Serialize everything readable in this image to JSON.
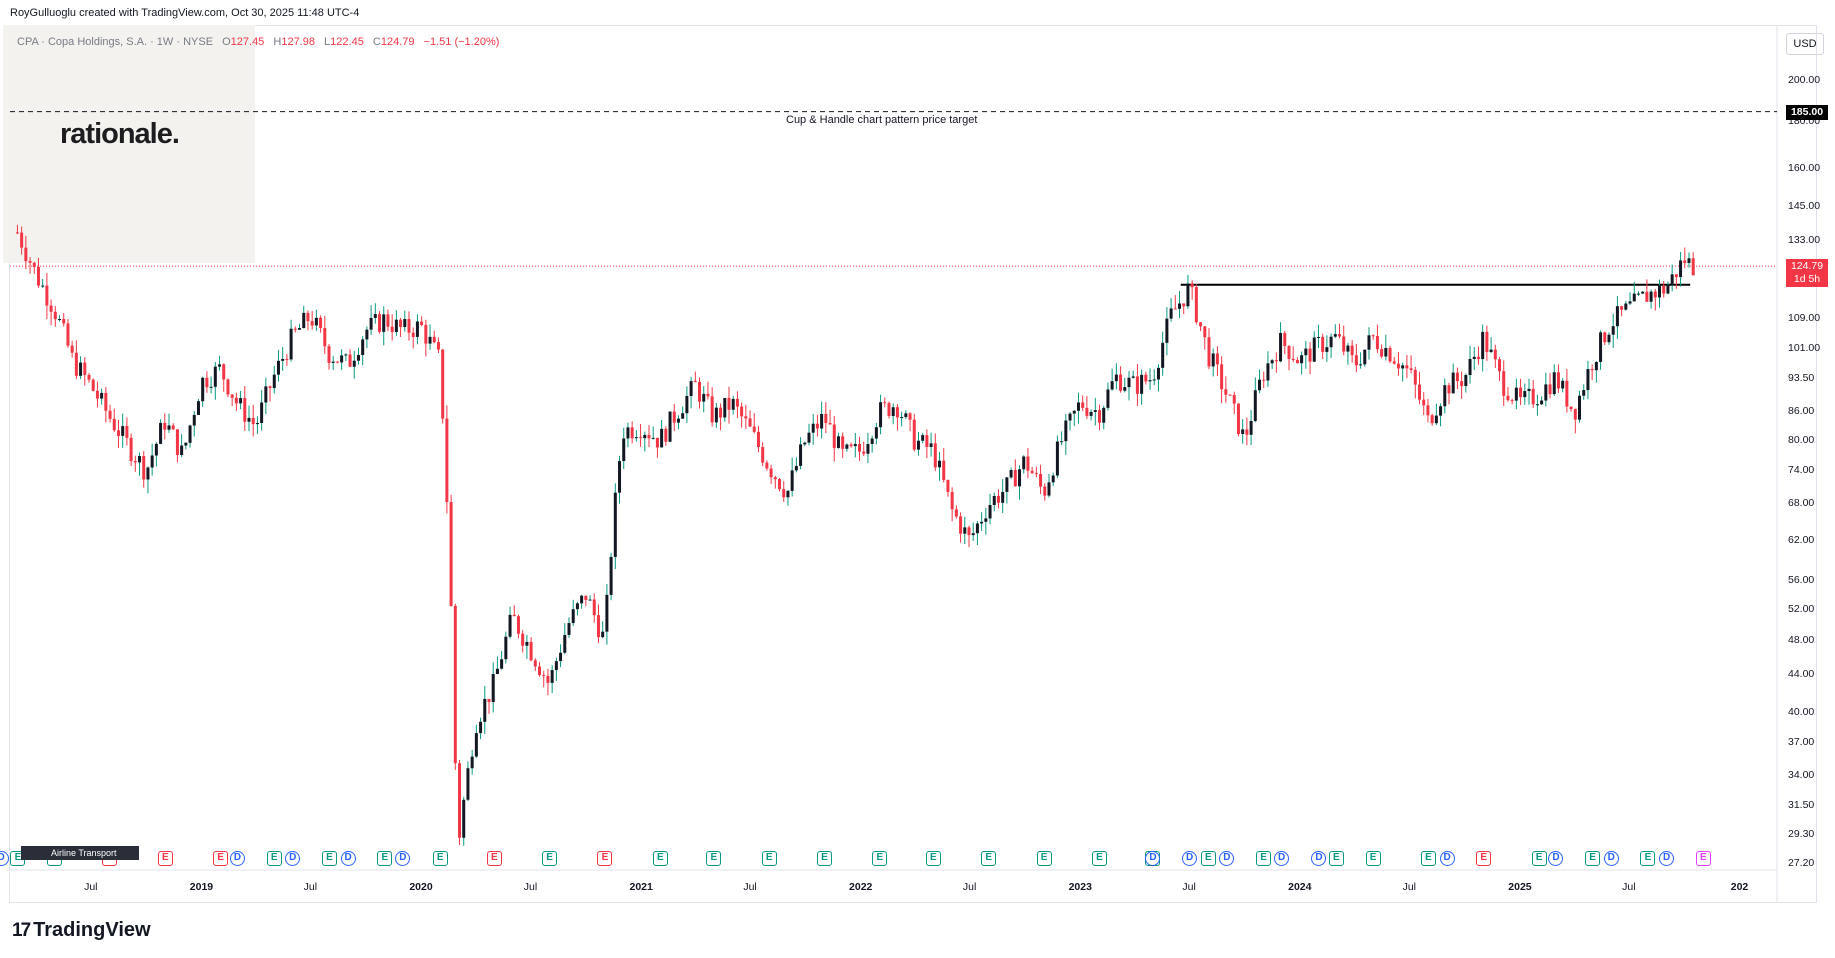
{
  "header": {
    "created_note": "RoyGulluoglu created with TradingView.com, Oct 30, 2025 11:48 UTC-4"
  },
  "legend": {
    "symbol": "CPA · Copa Holdings, S.A. · 1W · NYSE",
    "o_label": "O",
    "o_value": "127.45",
    "h_label": "H",
    "h_value": "127.98",
    "l_label": "L",
    "l_value": "122.45",
    "c_label": "C",
    "c_value": "124.79",
    "change": "−1.51 (−1.20%)"
  },
  "watermark": {
    "text": "rationale."
  },
  "currency_button": "USD",
  "annotation": {
    "text": "Cup & Handle chart pattern price target"
  },
  "badges": {
    "target": "185.00",
    "last_price": "124.79",
    "countdown": "1d 5h"
  },
  "footer": {
    "logo_glyph": "17",
    "brand": "TradingView"
  },
  "airline_label": "Airline Transport",
  "colors": {
    "up": "#089981",
    "down": "#f23645",
    "dividend": "#2962ff",
    "text": "#131722"
  },
  "chart_data": {
    "type": "candlestick",
    "ticker": "CPA",
    "interval": "1W",
    "scale": "log",
    "y_ticks": [
      "200.00",
      "180.00",
      "160.00",
      "145.00",
      "133.00",
      "124.79",
      "109.00",
      "101.00",
      "93.50",
      "86.00",
      "80.00",
      "74.00",
      "68.00",
      "62.00",
      "56.00",
      "52.00",
      "48.00",
      "44.00",
      "40.00",
      "37.00",
      "34.00",
      "31.50",
      "29.30",
      "27.20"
    ],
    "x_ticks": [
      {
        "date": "2018-07",
        "label": "Jul",
        "year": false
      },
      {
        "date": "2019-01",
        "label": "2019",
        "year": true
      },
      {
        "date": "2019-07",
        "label": "Jul",
        "year": false
      },
      {
        "date": "2020-01",
        "label": "2020",
        "year": true
      },
      {
        "date": "2020-07",
        "label": "Jul",
        "year": false
      },
      {
        "date": "2021-01",
        "label": "2021",
        "year": true
      },
      {
        "date": "2021-07",
        "label": "Jul",
        "year": false
      },
      {
        "date": "2022-01",
        "label": "2022",
        "year": true
      },
      {
        "date": "2022-07",
        "label": "Jul",
        "year": false
      },
      {
        "date": "2023-01",
        "label": "2023",
        "year": true
      },
      {
        "date": "2023-07",
        "label": "Jul",
        "year": false
      },
      {
        "date": "2024-01",
        "label": "2024",
        "year": true
      },
      {
        "date": "2024-07",
        "label": "Jul",
        "year": false
      },
      {
        "date": "2025-01",
        "label": "2025",
        "year": true
      },
      {
        "date": "2025-07",
        "label": "Jul",
        "year": false
      },
      {
        "date": "2026-01",
        "label": "202",
        "year": true
      }
    ],
    "price_path": [
      [
        "2018-03",
        136
      ],
      [
        "2018-04",
        122
      ],
      [
        "2018-05",
        112
      ],
      [
        "2018-06",
        98
      ],
      [
        "2018-07",
        92
      ],
      [
        "2018-08",
        85
      ],
      [
        "2018-09",
        79
      ],
      [
        "2018-10",
        74
      ],
      [
        "2018-11",
        84
      ],
      [
        "2018-12",
        77
      ],
      [
        "2019-01",
        93
      ],
      [
        "2019-02",
        96
      ],
      [
        "2019-03",
        88
      ],
      [
        "2019-04",
        83
      ],
      [
        "2019-05",
        94
      ],
      [
        "2019-06",
        104
      ],
      [
        "2019-07",
        110
      ],
      [
        "2019-08",
        100
      ],
      [
        "2019-09",
        97
      ],
      [
        "2019-10",
        106
      ],
      [
        "2019-11",
        109
      ],
      [
        "2019-12",
        106
      ],
      [
        "2020-01",
        107
      ],
      [
        "2020-02",
        98
      ],
      [
        "2020-03",
        28
      ],
      [
        "2020-04",
        39
      ],
      [
        "2020-05",
        43
      ],
      [
        "2020-06",
        51
      ],
      [
        "2020-07",
        47
      ],
      [
        "2020-08",
        43
      ],
      [
        "2020-09",
        50
      ],
      [
        "2020-10",
        54
      ],
      [
        "2020-11",
        48
      ],
      [
        "2020-12",
        82
      ],
      [
        "2021-01",
        83
      ],
      [
        "2021-02",
        80
      ],
      [
        "2021-03",
        86
      ],
      [
        "2021-04",
        92
      ],
      [
        "2021-05",
        85
      ],
      [
        "2021-06",
        88
      ],
      [
        "2021-07",
        82
      ],
      [
        "2021-08",
        75
      ],
      [
        "2021-09",
        70
      ],
      [
        "2021-10",
        80
      ],
      [
        "2021-11",
        85
      ],
      [
        "2021-12",
        77
      ],
      [
        "2022-01",
        78
      ],
      [
        "2022-02",
        86
      ],
      [
        "2022-03",
        88
      ],
      [
        "2022-04",
        80
      ],
      [
        "2022-05",
        78
      ],
      [
        "2022-06",
        67
      ],
      [
        "2022-07",
        62
      ],
      [
        "2022-08",
        68
      ],
      [
        "2022-09",
        71
      ],
      [
        "2022-10",
        76
      ],
      [
        "2022-11",
        70
      ],
      [
        "2022-12",
        80
      ],
      [
        "2023-01",
        88
      ],
      [
        "2023-02",
        86
      ],
      [
        "2023-03",
        94
      ],
      [
        "2023-04",
        92
      ],
      [
        "2023-05",
        94
      ],
      [
        "2023-06",
        110
      ],
      [
        "2023-07",
        118
      ],
      [
        "2023-08",
        100
      ],
      [
        "2023-09",
        90
      ],
      [
        "2023-10",
        80
      ],
      [
        "2023-11",
        95
      ],
      [
        "2023-12",
        103
      ],
      [
        "2024-01",
        98
      ],
      [
        "2024-02",
        102
      ],
      [
        "2024-03",
        104
      ],
      [
        "2024-04",
        97
      ],
      [
        "2024-05",
        104
      ],
      [
        "2024-06",
        100
      ],
      [
        "2024-07",
        95
      ],
      [
        "2024-08",
        84
      ],
      [
        "2024-09",
        92
      ],
      [
        "2024-10",
        94
      ],
      [
        "2024-11",
        104
      ],
      [
        "2024-12",
        93
      ],
      [
        "2025-01",
        88
      ],
      [
        "2025-02",
        90
      ],
      [
        "2025-03",
        94
      ],
      [
        "2025-04",
        86
      ],
      [
        "2025-05",
        98
      ],
      [
        "2025-06",
        108
      ],
      [
        "2025-07",
        112
      ],
      [
        "2025-08",
        116
      ],
      [
        "2025-09",
        118
      ],
      [
        "2025-10",
        127
      ],
      [
        "2025-10-30",
        124.79
      ]
    ],
    "last_close": 124.79,
    "price_target": 185.0,
    "resistance_level": 119
  },
  "events": [
    {
      "date": "2018-03",
      "type": "E",
      "color": "green"
    },
    {
      "date": "2018-05",
      "type": "E",
      "color": "green"
    },
    {
      "date": "2018-08",
      "type": "E",
      "color": "red"
    },
    {
      "date": "2018-11",
      "type": "E",
      "color": "red"
    },
    {
      "date": "2019-02",
      "type": "E",
      "color": "red"
    },
    {
      "date": "2019-05",
      "type": "E",
      "color": "green"
    },
    {
      "date": "2019-08",
      "type": "E",
      "color": "green"
    },
    {
      "date": "2019-11",
      "type": "E",
      "color": "green"
    },
    {
      "date": "2020-02",
      "type": "E",
      "color": "green"
    },
    {
      "date": "2020-05",
      "type": "E",
      "color": "red"
    },
    {
      "date": "2020-08",
      "type": "E",
      "color": "green"
    },
    {
      "date": "2020-11",
      "type": "E",
      "color": "red"
    },
    {
      "date": "2021-02",
      "type": "E",
      "color": "green"
    },
    {
      "date": "2021-05",
      "type": "E",
      "color": "green"
    },
    {
      "date": "2021-08",
      "type": "E",
      "color": "green"
    },
    {
      "date": "2021-11",
      "type": "E",
      "color": "green"
    },
    {
      "date": "2022-02",
      "type": "E",
      "color": "green"
    },
    {
      "date": "2022-05",
      "type": "E",
      "color": "green"
    },
    {
      "date": "2022-08",
      "type": "E",
      "color": "green"
    },
    {
      "date": "2022-11",
      "type": "E",
      "color": "green"
    },
    {
      "date": "2023-02",
      "type": "E",
      "color": "green"
    },
    {
      "date": "2023-05",
      "type": "E",
      "color": "green"
    },
    {
      "date": "2023-08",
      "type": "E",
      "color": "green"
    },
    {
      "date": "2023-11",
      "type": "E",
      "color": "green"
    },
    {
      "date": "2024-03",
      "type": "E",
      "color": "green"
    },
    {
      "date": "2024-05",
      "type": "E",
      "color": "green"
    },
    {
      "date": "2024-08",
      "type": "E",
      "color": "green"
    },
    {
      "date": "2024-11",
      "type": "E",
      "color": "red"
    },
    {
      "date": "2025-02",
      "type": "E",
      "color": "green"
    },
    {
      "date": "2025-05",
      "type": "E",
      "color": "green"
    },
    {
      "date": "2025-08",
      "type": "E",
      "color": "green"
    },
    {
      "date": "2025-11",
      "type": "E",
      "color": "purple"
    }
  ],
  "dividends": [
    {
      "date": "2018-02"
    },
    {
      "date": "2019-03"
    },
    {
      "date": "2019-06"
    },
    {
      "date": "2019-09"
    },
    {
      "date": "2019-12"
    },
    {
      "date": "2023-05"
    },
    {
      "date": "2023-07"
    },
    {
      "date": "2023-09"
    },
    {
      "date": "2023-12"
    },
    {
      "date": "2024-02"
    },
    {
      "date": "2024-09"
    },
    {
      "date": "2025-03"
    },
    {
      "date": "2025-06"
    },
    {
      "date": "2025-09"
    }
  ]
}
